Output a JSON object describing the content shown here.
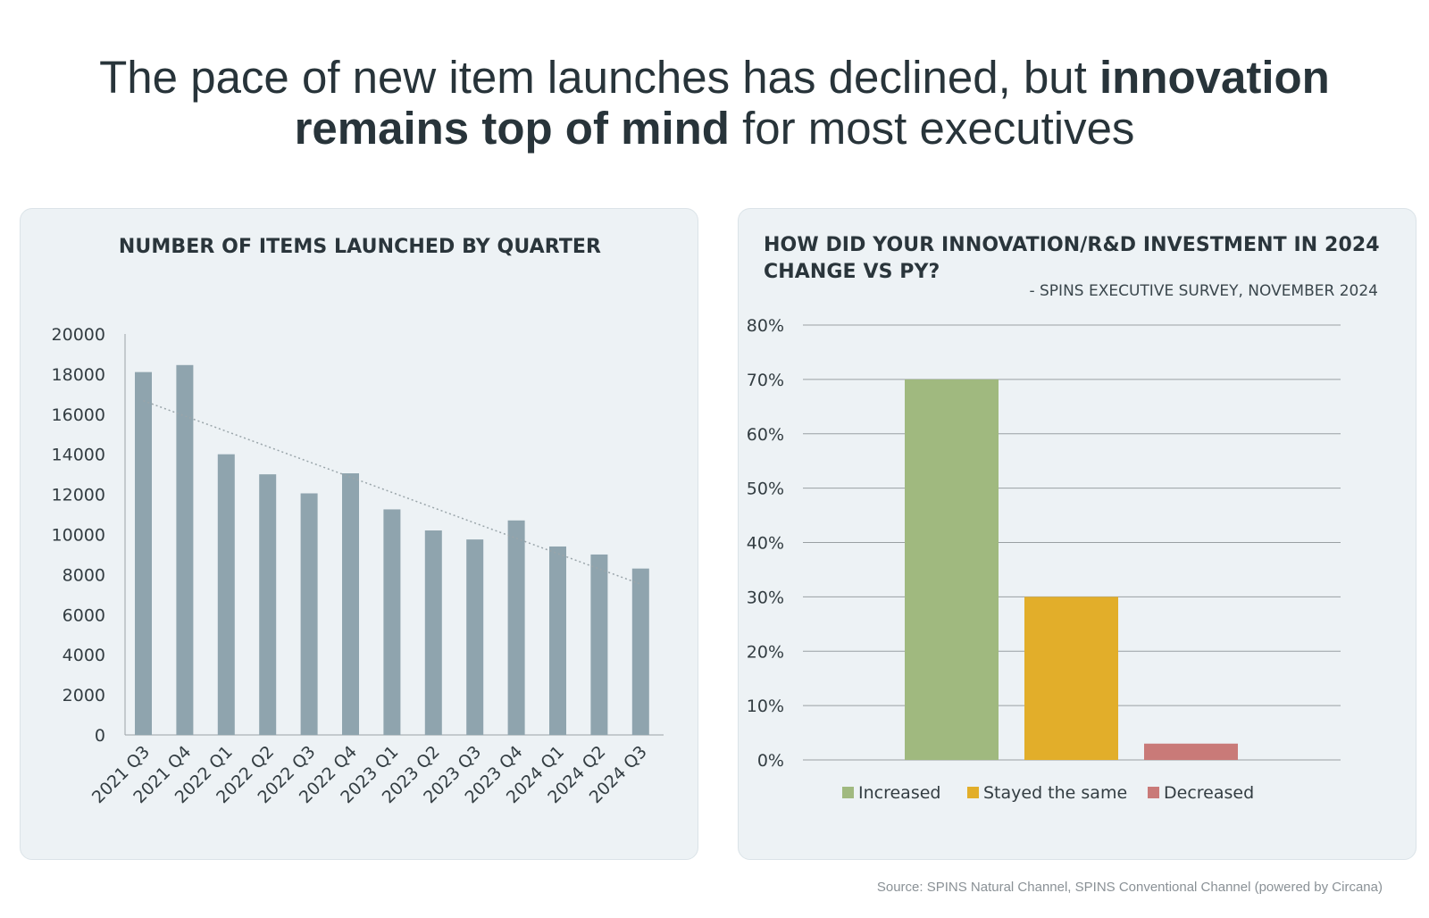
{
  "headline": {
    "part1": "The pace of new item launches has declined, but ",
    "bold1": "innovation",
    "bold2": "remains top of mind",
    "part2": " for most executives"
  },
  "source_note": "Source: SPINS Natural Channel, SPINS Conventional Channel (powered by Circana)",
  "colors": {
    "bars_left": "#8fa4ae",
    "trendline": "#9aa5aa",
    "increased": "#a0b97f",
    "stayed": "#e2ae2a",
    "decreased": "#c97a78",
    "gridline": "#9aa0a3"
  },
  "chart_data": [
    {
      "type": "bar",
      "title": "NUMBER OF ITEMS LAUNCHED BY QUARTER",
      "categories": [
        "2021 Q3",
        "2021 Q4",
        "2022 Q1",
        "2022 Q2",
        "2022 Q3",
        "2022 Q4",
        "2023 Q1",
        "2023 Q2",
        "2023 Q3",
        "2023 Q4",
        "2024 Q1",
        "2024 Q2",
        "2024 Q3"
      ],
      "values": [
        18100,
        18450,
        14000,
        13000,
        12050,
        13050,
        11250,
        10200,
        9750,
        10700,
        9400,
        9000,
        8300
      ],
      "yticks": [
        "0",
        "2000",
        "4000",
        "6000",
        "8000",
        "10000",
        "12000",
        "14000",
        "16000",
        "18000",
        "20000"
      ],
      "ylim": [
        0,
        20000
      ],
      "trendline": "linear, dotted",
      "grid": false,
      "legend": "none"
    },
    {
      "type": "bar",
      "title": "HOW DID YOUR INNOVATION/R&D INVESTMENT IN 2024 CHANGE VS PY?",
      "subtitle": "- SPINS EXECUTIVE SURVEY, NOVEMBER 2024",
      "categories": [
        "Increased",
        "Stayed the same",
        "Decreased"
      ],
      "values": [
        0.7,
        0.3,
        0.03
      ],
      "yticks": [
        "0%",
        "10%",
        "20%",
        "30%",
        "40%",
        "50%",
        "60%",
        "70%",
        "80%"
      ],
      "ylim": [
        0,
        0.8
      ],
      "grid": true,
      "legend": "bottom",
      "legend_entries": [
        "Increased",
        "Stayed the same",
        "Decreased"
      ]
    }
  ]
}
